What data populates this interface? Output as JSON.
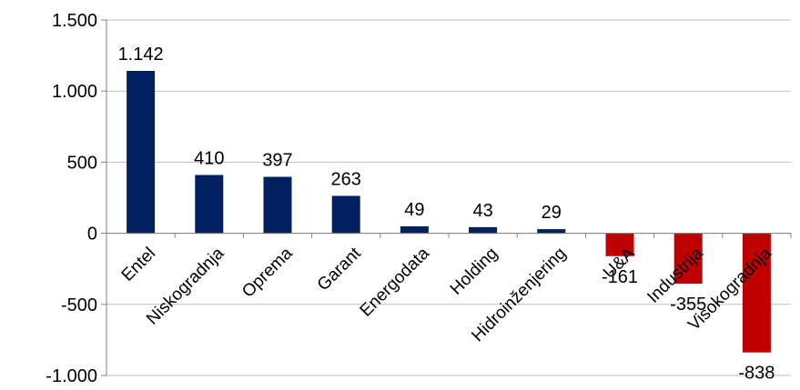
{
  "chart_data": {
    "type": "bar",
    "title": "",
    "xlabel": "",
    "ylabel": "",
    "categories": [
      "Entel",
      "Niskogradnja",
      "Oprema",
      "Garant",
      "Energodata",
      "Holding",
      "Hidroinženjering",
      "U&A",
      "Industrija",
      "Visokogradnja"
    ],
    "values": [
      1142,
      410,
      397,
      263,
      49,
      43,
      29,
      -161,
      -355,
      -838
    ],
    "data_labels": [
      "1.142",
      "410",
      "397",
      "263",
      "49",
      "43",
      "29",
      "-161",
      "-355",
      "-838"
    ],
    "ylim": [
      -1000,
      1500
    ],
    "yticks": [
      1500,
      1000,
      500,
      0,
      -500,
      -1000
    ],
    "ytick_labels": [
      "1.500",
      "1.000",
      "500",
      "0",
      "-500",
      "-1.000"
    ],
    "grid": true,
    "legend": "none",
    "colors": {
      "positive": "#002060",
      "negative": "#C00000",
      "grid": "#bfbfbf",
      "axis": "#808080"
    }
  }
}
